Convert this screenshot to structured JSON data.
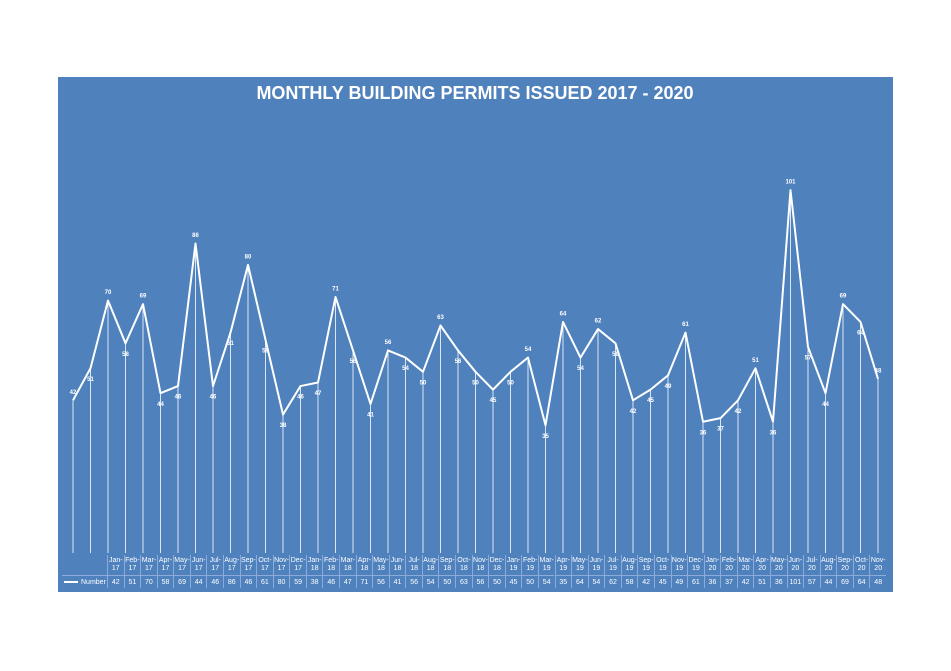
{
  "chart_data": {
    "type": "line",
    "title": "MONTHLY BUILDING PERMITS ISSUED 2017 - 2020",
    "categories": [
      "Jan-17",
      "Feb-17",
      "Mar-17",
      "Apr-17",
      "May-17",
      "Jun-17",
      "Jul-17",
      "Aug-17",
      "Sep-17",
      "Oct-17",
      "Nov-17",
      "Dec-17",
      "Jan-18",
      "Feb-18",
      "Mar-18",
      "Apr-18",
      "May-18",
      "Jun-18",
      "Jul-18",
      "Aug-18",
      "Sep-18",
      "Oct-18",
      "Nov-18",
      "Dec-18",
      "Jan-19",
      "Feb-19",
      "Mar-19",
      "Apr-19",
      "May-19",
      "Jun-19",
      "Jul-19",
      "Aug-19",
      "Sep-19",
      "Oct-19",
      "Nov-19",
      "Dec-19",
      "Jan-20",
      "Feb-20",
      "Mar-20",
      "Apr-20",
      "May-20",
      "Jun-20",
      "Jul-20",
      "Aug-20",
      "Sep-20",
      "Oct-20",
      "Nov-20"
    ],
    "series": [
      {
        "name": "Number",
        "color": "#ffffff",
        "values": [
          42,
          51,
          70,
          58,
          69,
          44,
          46,
          86,
          46,
          61,
          80,
          59,
          38,
          46,
          47,
          71,
          56,
          41,
          56,
          54,
          50,
          63,
          56,
          50,
          45,
          50,
          54,
          35,
          64,
          54,
          62,
          58,
          42,
          45,
          49,
          61,
          36,
          37,
          42,
          51,
          36,
          101,
          57,
          44,
          69,
          64,
          48
        ]
      }
    ],
    "ylim": [
      0,
      110
    ]
  }
}
